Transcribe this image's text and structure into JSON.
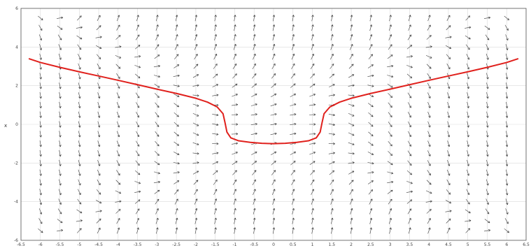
{
  "chart_data": {
    "type": "direction-field",
    "title": "",
    "xlabel": "",
    "ylabel": "x",
    "xlim": [
      -6.5,
      6.5
    ],
    "ylim": [
      -6,
      6
    ],
    "x_ticks": [
      -6.5,
      -6,
      -5.5,
      -5,
      -4.5,
      -4,
      -3.5,
      -3,
      -2.5,
      -2,
      -1.5,
      -1,
      -0.5,
      0,
      0.5,
      1,
      1.5,
      2,
      2.5,
      3,
      3.5,
      4,
      4.5,
      5,
      5.5,
      6,
      6.5
    ],
    "x_tick_labels": [
      "-6.5",
      "-6",
      "-5.5",
      "-5",
      "-4.5",
      "-4",
      "-3.5",
      "-3",
      "-2.5",
      "-2",
      "-1.5",
      "-1",
      "-0.5",
      "0",
      "0.5",
      "1",
      "1.5",
      "2",
      "2.5",
      "3",
      "3.5",
      "4",
      "4.5",
      "5",
      "5.5",
      "6",
      "6.5"
    ],
    "y_ticks": [
      -6,
      -4,
      -2,
      0,
      2,
      4,
      6
    ],
    "y_tick_labels": [
      "-6",
      "-4",
      "-2",
      "0",
      "2",
      "4",
      "6"
    ],
    "grid": true,
    "field_grid": {
      "x_step": 0.5,
      "y_step": 0.5
    },
    "colors": {
      "solution_curve": "#e0201c",
      "arrows": "#3a3a3a",
      "grid": "#d9d9d9"
    },
    "series": [
      {
        "kind": "solution-curve",
        "x": [
          -6.3,
          -6.0,
          -5.5,
          -5.0,
          -4.5,
          -4.0,
          -3.5,
          -3.0,
          -2.5,
          -2.0,
          -1.7,
          -1.45,
          -1.3,
          -1.25,
          -1.2,
          -1.1,
          -0.9,
          -0.6,
          -0.3,
          0.0,
          0.3,
          0.6,
          0.9,
          1.1,
          1.2,
          1.25,
          1.3,
          1.45,
          1.7,
          2.0,
          2.5,
          3.0,
          3.5,
          4.0,
          4.5,
          5.0,
          5.5,
          6.0,
          6.3
        ],
        "y": [
          3.4,
          3.2,
          2.95,
          2.72,
          2.5,
          2.28,
          2.05,
          1.82,
          1.6,
          1.35,
          1.15,
          0.9,
          0.55,
          0.1,
          -0.4,
          -0.7,
          -0.85,
          -0.93,
          -0.98,
          -1.0,
          -0.98,
          -0.93,
          -0.85,
          -0.7,
          -0.4,
          0.1,
          0.55,
          0.9,
          1.15,
          1.35,
          1.6,
          1.82,
          2.05,
          2.28,
          2.5,
          2.72,
          2.95,
          3.2,
          3.4
        ]
      }
    ]
  }
}
